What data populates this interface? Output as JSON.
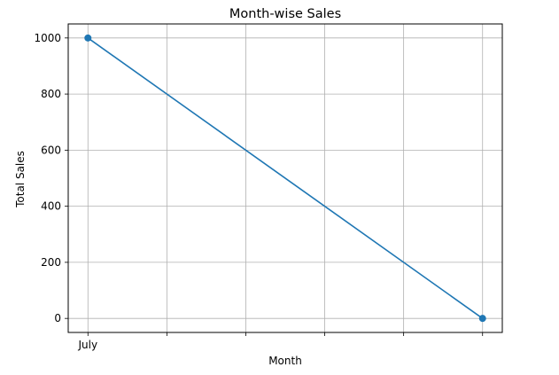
{
  "chart_data": {
    "type": "line",
    "title": "Month-wise Sales",
    "xlabel": "Month",
    "ylabel": "Total Sales",
    "x_tick_labels": [
      "July",
      "",
      "",
      "",
      "",
      ""
    ],
    "series": [
      {
        "values": [
          1000,
          0
        ],
        "x": [
          0,
          5
        ],
        "color": "#1f77b4",
        "marker": "circle"
      }
    ],
    "xlim": [
      -0.25,
      5.25
    ],
    "ylim": [
      -50,
      1050
    ],
    "yticks": [
      0,
      200,
      400,
      600,
      800,
      1000
    ],
    "xticks": [
      0,
      1,
      2,
      3,
      4,
      5
    ],
    "grid": true
  }
}
